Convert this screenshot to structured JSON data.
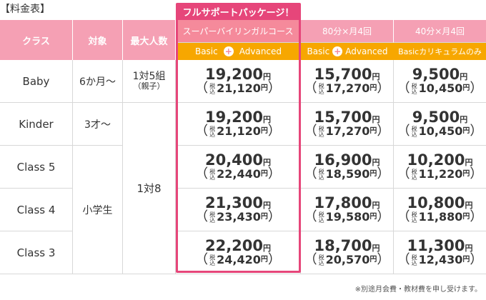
{
  "page": {
    "title": "【料金表】"
  },
  "highlight": {
    "label": "フルサポートパッケージ！"
  },
  "headers": {
    "class": "クラス",
    "target": "対象",
    "max_people": "最大人数",
    "plans": [
      {
        "name": "スーパーバイリンガルコース",
        "basic": "Basic",
        "plus": "+",
        "advanced": "Advanced"
      },
      {
        "name": "80分×月4回",
        "basic": "Basic",
        "plus": "+",
        "advanced": "Advanced"
      },
      {
        "name": "40分×月4回",
        "sub": "Basicカリキュラムのみ"
      }
    ]
  },
  "yen": "円",
  "tax_top": "税",
  "tax_bottom": "込",
  "paren_open": "（",
  "paren_close": "）",
  "rows": [
    {
      "class": "Baby",
      "target": "6か月〜",
      "max": "1対5組",
      "max_note": "（親子）",
      "prices": [
        {
          "main": "19,200",
          "tax": "21,120"
        },
        {
          "main": "15,700",
          "tax": "17,270"
        },
        {
          "main": "9,500",
          "tax": "10,450"
        }
      ]
    },
    {
      "class": "Kinder",
      "target": "3才〜",
      "prices": [
        {
          "main": "19,200",
          "tax": "21,120"
        },
        {
          "main": "15,700",
          "tax": "17,270"
        },
        {
          "main": "9,500",
          "tax": "10,450"
        }
      ]
    },
    {
      "class": "Class 5",
      "prices": [
        {
          "main": "20,400",
          "tax": "22,440"
        },
        {
          "main": "16,900",
          "tax": "18,590"
        },
        {
          "main": "10,200",
          "tax": "11,220"
        }
      ]
    },
    {
      "class": "Class 4",
      "prices": [
        {
          "main": "21,300",
          "tax": "23,430"
        },
        {
          "main": "17,800",
          "tax": "19,580"
        },
        {
          "main": "10,800",
          "tax": "11,880"
        }
      ]
    },
    {
      "class": "Class 3",
      "prices": [
        {
          "main": "22,200",
          "tax": "24,420"
        },
        {
          "main": "18,700",
          "tax": "20,570"
        },
        {
          "main": "11,300",
          "tax": "12,430"
        }
      ]
    }
  ],
  "merged": {
    "elementary": "小学生",
    "one_to_eight": "1対8"
  },
  "footnote": "※別途月会費・教材費を申し受けます。",
  "colors": {
    "header_pink": "#f5a0b4",
    "accent_pink": "#e6467a",
    "orange": "#f7a700"
  }
}
